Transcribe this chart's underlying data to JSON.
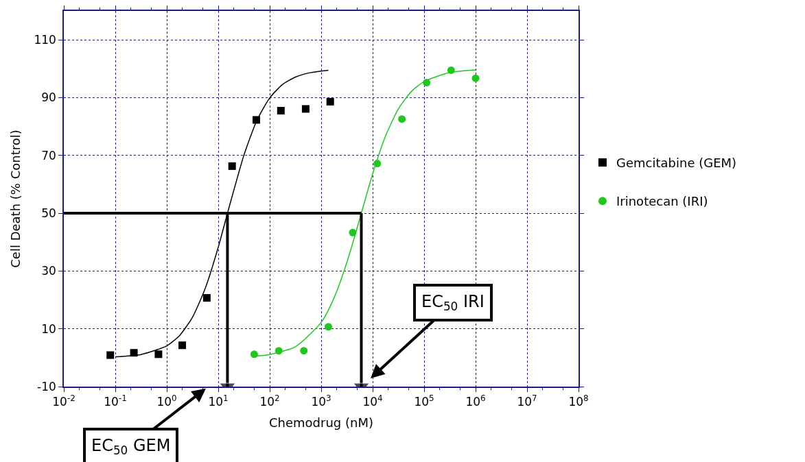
{
  "chart_data": {
    "type": "scatter",
    "xlabel": "Chemodrug (nM)",
    "ylabel": "Cell Death (% Control)",
    "log": "x",
    "grid": true,
    "legend": "right",
    "xlim": [
      0.01,
      100000000
    ],
    "ylim": [
      -10,
      120
    ],
    "xticks": [
      {
        "value": 0.01,
        "label": "10$^{-2}$"
      },
      {
        "value": 0.1,
        "label": "10$^{-1}$"
      },
      {
        "value": 1,
        "label": "10$^{0}$"
      },
      {
        "value": 10,
        "label": "10$^{1}$"
      },
      {
        "value": 100,
        "label": "10$^{2}$"
      },
      {
        "value": 1000,
        "label": "10$^{3}$"
      },
      {
        "value": 10000,
        "label": "10$^{4}$"
      },
      {
        "value": 100000,
        "label": "10$^{5}$"
      },
      {
        "value": 1000000,
        "label": "10$^{6}$"
      },
      {
        "value": 10000000,
        "label": "10$^{7}$"
      },
      {
        "value": 100000000,
        "label": "10$^{8}$"
      }
    ],
    "yticks": [
      -10,
      10,
      30,
      50,
      70,
      90,
      110
    ],
    "series": [
      {
        "name": "Gemcitabine (GEM)",
        "marker": "square",
        "color": "#000000",
        "x": [
          0.08,
          0.23,
          0.69,
          2.0,
          6.0,
          18.6,
          55,
          165,
          500,
          1500
        ],
        "values": [
          0.9,
          1.7,
          1.2,
          4.3,
          20.7,
          66.3,
          82.3,
          85.5,
          86.1,
          88.6
        ]
      },
      {
        "name": "Irinotecan (IRI)",
        "marker": "circle",
        "color": "#1ec81e",
        "x": [
          50,
          150,
          460,
          1380,
          4100,
          12300,
          37000,
          112000,
          335000,
          1000000
        ],
        "values": [
          1.2,
          2.4,
          2.4,
          10.7,
          43.3,
          67.2,
          82.6,
          95.2,
          99.5,
          96.7
        ]
      },
      {
        "type": "line",
        "marker": "none",
        "color": "#000000",
        "x": [
          0.1,
          0.316,
          1,
          1.78,
          3.16,
          5.62,
          10,
          15.1,
          17.8,
          31.6,
          56.2,
          100,
          178,
          316,
          562,
          1000,
          1380
        ],
        "values": [
          0.3,
          1.1,
          4.1,
          7.7,
          14.0,
          24.1,
          38.2,
          50,
          54.6,
          70.1,
          82.1,
          89.9,
          94.6,
          97.1,
          98.5,
          99.2,
          99.5
        ]
      },
      {
        "type": "line",
        "marker": "none",
        "color": "#1ec81e",
        "x": [
          50,
          100,
          316,
          1000,
          1780,
          3160,
          6030,
          10000,
          17800,
          31600,
          56200,
          100000,
          316000,
          1000000
        ],
        "values": [
          0.5,
          1.1,
          3.8,
          12.2,
          20.7,
          33.0,
          50,
          63.6,
          76.7,
          86.1,
          92.1,
          95.6,
          98.7,
          99.6
        ]
      },
      {
        "type": "line",
        "marker": "none",
        "color": "#000000",
        "x": [
          0.01,
          6030
        ],
        "values": [
          50,
          50
        ]
      },
      {
        "type": "line",
        "marker": "triangle",
        "color": "#000000",
        "x": [
          15.1,
          15.1
        ],
        "values": [
          50,
          -10
        ]
      },
      {
        "type": "line",
        "marker": "triangle",
        "color": "#000000",
        "x": [
          6030,
          6030
        ],
        "values": [
          50,
          -10
        ]
      }
    ],
    "annotations": [
      "EC$_{50}$ GEM",
      "EC$_{50}$ IRI"
    ]
  }
}
